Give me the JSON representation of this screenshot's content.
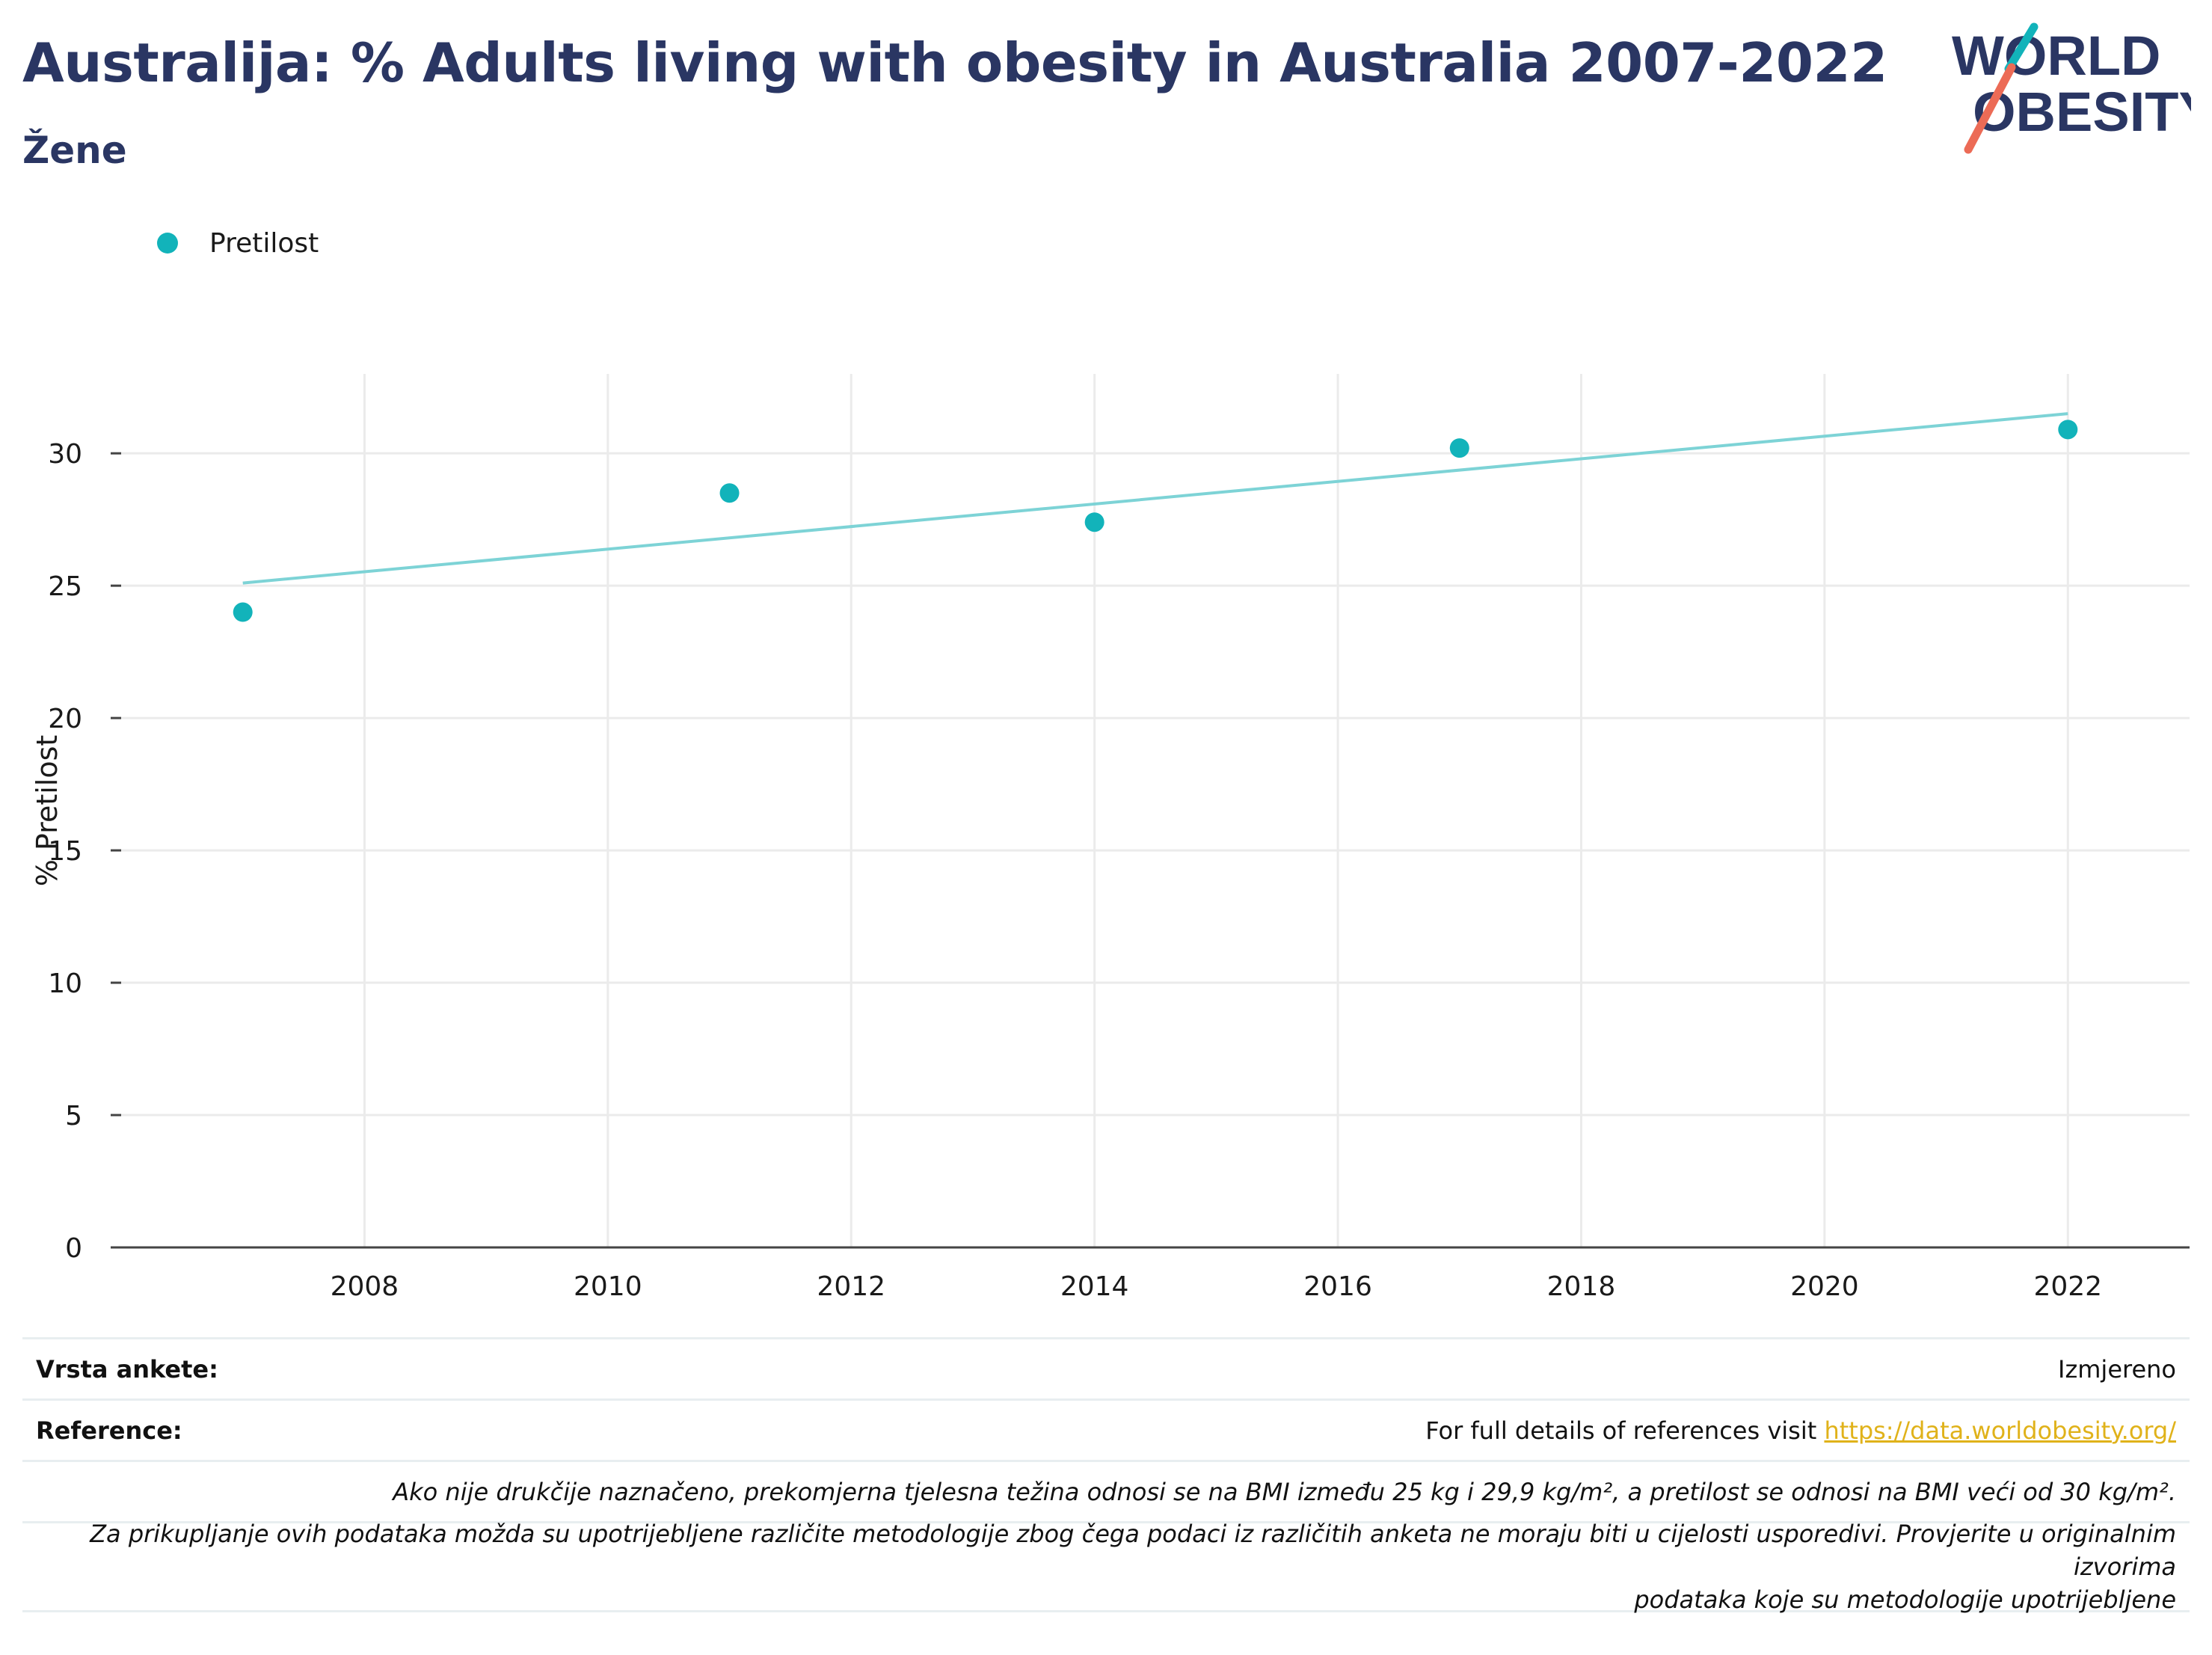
{
  "header": {
    "title": "Australija: % Adults living with obesity in Australia 2007-2022",
    "subtitle": "Žene"
  },
  "logo": {
    "line1": "WORLD",
    "line2": "OBESITY"
  },
  "legend": {
    "label": "Pretilost"
  },
  "colors": {
    "series": "#12b3ba",
    "trend": "#7dd3d6",
    "title": "#2a3663",
    "link": "#e0b21a"
  },
  "chart_data": {
    "type": "scatter",
    "title": "Australija: % Adults living with obesity in Australia 2007-2022",
    "subtitle": "Žene",
    "xlabel": "",
    "ylabel": "% Pretilost",
    "xlim": [
      2006.0,
      2023.0
    ],
    "ylim": [
      0,
      33
    ],
    "x_ticks": [
      2008,
      2010,
      2012,
      2014,
      2016,
      2018,
      2020,
      2022
    ],
    "y_ticks": [
      0,
      5,
      10,
      15,
      20,
      25,
      30
    ],
    "grid": true,
    "legend_position": "top-left",
    "series": [
      {
        "name": "Pretilost",
        "x": [
          2007,
          2011,
          2014,
          2017,
          2022
        ],
        "y": [
          24.0,
          28.5,
          27.4,
          30.2,
          30.9
        ]
      }
    ],
    "trendline": {
      "x": [
        2007,
        2022
      ],
      "y": [
        25.1,
        31.5
      ]
    }
  },
  "footer": {
    "survey_label": "Vrsta ankete:",
    "survey_value": "Izmjereno",
    "reference_label": "Reference:",
    "reference_text": "For full details of references visit ",
    "reference_link": "https://data.worldobesity.org/",
    "note1": "Ako nije drukčije naznačeno, prekomjerna tjelesna težina odnosi se na BMI između 25 kg i 29,9 kg/m², a pretilost se odnosi na BMI veći od 30 kg/m².",
    "note2_line1": "Za prikupljanje ovih podataka možda su upotrijebljene različite metodologije zbog čega podaci iz različitih anketa ne moraju biti u cijelosti usporedivi. Provjerite u originalnim izvorima",
    "note2_line2": "podataka koje su metodologije upotrijebljene"
  }
}
